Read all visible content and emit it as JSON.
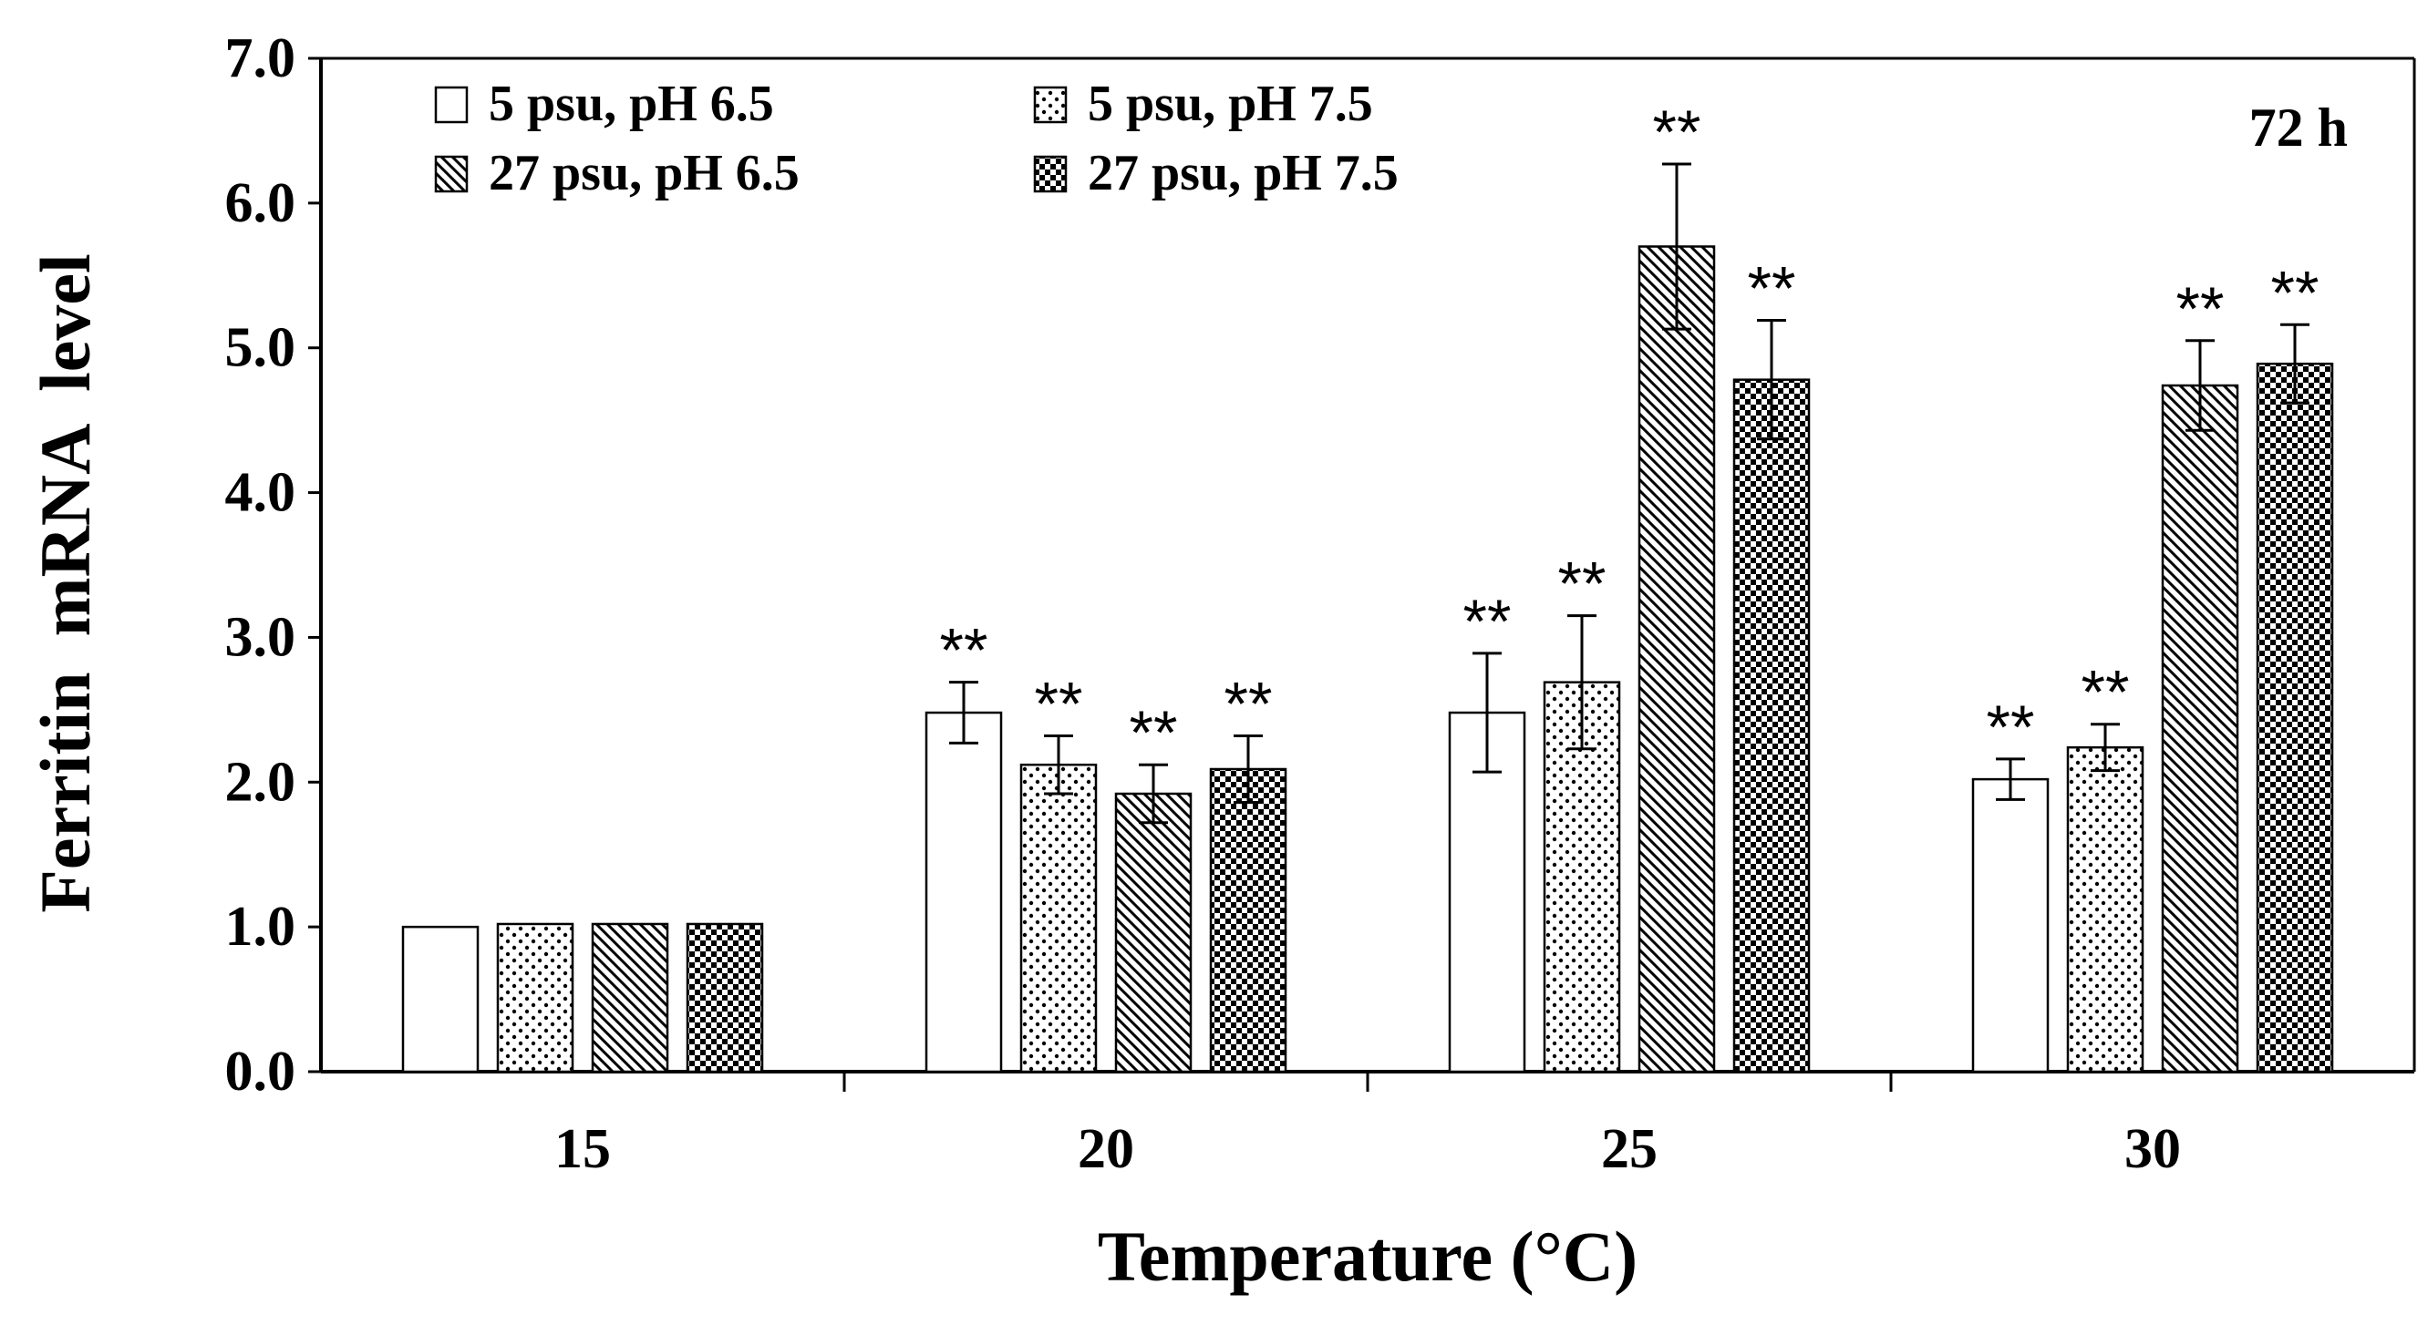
{
  "chart_data": {
    "type": "bar",
    "categories": [
      "15",
      "20",
      "25",
      "30"
    ],
    "series": [
      {
        "name": "5 psu, pH 6.5",
        "pattern": "blank",
        "values": [
          1.0,
          2.48,
          2.48,
          2.02
        ],
        "errors": [
          0.0,
          0.21,
          0.41,
          0.14
        ],
        "significance": [
          "",
          "**",
          "**",
          "**"
        ]
      },
      {
        "name": "5 psu, pH 7.5",
        "pattern": "dots",
        "values": [
          1.02,
          2.12,
          2.69,
          2.24
        ],
        "errors": [
          0.0,
          0.2,
          0.46,
          0.16
        ],
        "significance": [
          "",
          "**",
          "**",
          "**"
        ]
      },
      {
        "name": "27 psu, pH 6.5",
        "pattern": "diagonal",
        "values": [
          1.02,
          1.92,
          5.7,
          4.74
        ],
        "errors": [
          0.0,
          0.2,
          0.57,
          0.31
        ],
        "significance": [
          "",
          "**",
          "**",
          "**"
        ]
      },
      {
        "name": "27 psu, pH 7.5",
        "pattern": "checker",
        "values": [
          1.02,
          2.09,
          4.78,
          4.89
        ],
        "errors": [
          0.0,
          0.23,
          0.41,
          0.27
        ],
        "significance": [
          "",
          "**",
          "**",
          "**"
        ]
      }
    ],
    "title": "",
    "annotation": "72 h",
    "xlabel": "Temperature (°C)",
    "ylabel": "Ferritin  mRNA  level",
    "ylim": [
      0,
      7.0
    ],
    "yticks": [
      "0.0",
      "1.0",
      "2.0",
      "3.0",
      "4.0",
      "5.0",
      "6.0",
      "7.0"
    ],
    "grid": false,
    "legend_position": "top-left"
  }
}
